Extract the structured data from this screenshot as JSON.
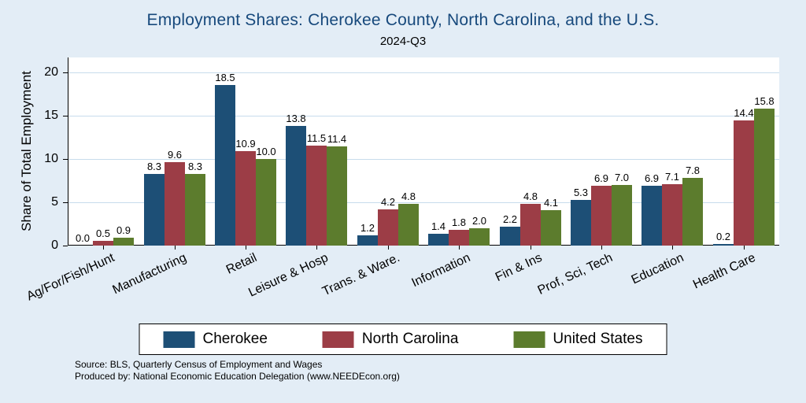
{
  "chart": {
    "title": "Employment Shares: Cherokee County, North Carolina, and the U.S.",
    "subtitle": "2024-Q3",
    "ylabel": "Share of Total Employment"
  },
  "chart_data": {
    "type": "bar",
    "title": "Employment Shares: Cherokee County, North Carolina, and the U.S.",
    "subtitle": "2024-Q3",
    "xlabel": "",
    "ylabel": "Share of Total Employment",
    "ylim": [
      0,
      20
    ],
    "yticks": [
      0,
      5,
      10,
      15,
      20
    ],
    "grid": true,
    "legend_position": "bottom",
    "categories": [
      "Ag/For/Fish/Hunt",
      "Manufacturing",
      "Retail",
      "Leisure & Hosp",
      "Trans. & Ware.",
      "Information",
      "Fin & Ins",
      "Prof, Sci, Tech",
      "Education",
      "Health Care"
    ],
    "series": [
      {
        "name": "Cherokee",
        "color": "#1d4f76",
        "values": [
          0.0,
          8.3,
          18.5,
          13.8,
          1.2,
          1.4,
          2.2,
          5.3,
          6.9,
          0.2
        ]
      },
      {
        "name": "North Carolina",
        "color": "#9c3d46",
        "values": [
          0.5,
          9.6,
          10.9,
          11.5,
          4.2,
          1.8,
          4.8,
          6.9,
          7.1,
          14.4
        ]
      },
      {
        "name": "United States",
        "color": "#5c7c2d",
        "values": [
          0.9,
          8.3,
          10.0,
          11.4,
          4.8,
          2.0,
          4.1,
          7.0,
          7.8,
          15.8
        ]
      }
    ]
  },
  "footer": {
    "line1": "Source: BLS, Quarterly Census of Employment and Wages",
    "line2": "Produced by: National Economic Education Delegation (www.NEEDEcon.org)"
  },
  "colors": {
    "background": "#e3edf6",
    "plot_background": "#ffffff",
    "grid": "#c7dcec",
    "title": "#17497c",
    "cherokee": "#1d4f76",
    "north_carolina": "#9c3d46",
    "united_states": "#5c7c2d"
  }
}
